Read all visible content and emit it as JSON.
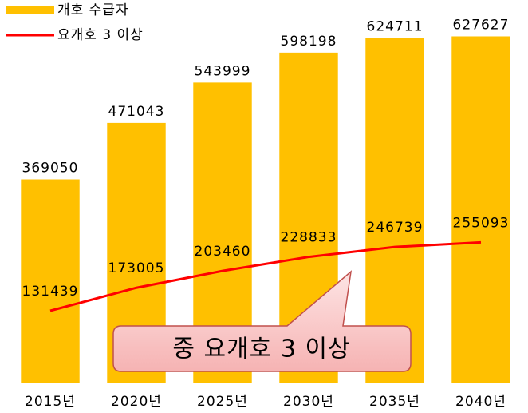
{
  "chart_data": {
    "type": "bar_line",
    "categories": [
      "2015년",
      "2020년",
      "2025년",
      "2030년",
      "2035년",
      "2040년"
    ],
    "series": [
      {
        "name": "개호 수급자",
        "color": "#ffc000",
        "type": "bar",
        "values": [
          369050,
          471043,
          543999,
          598198,
          624711,
          627627
        ]
      },
      {
        "name": "요개호 3 이상",
        "color": "#ff0000",
        "type": "line",
        "values": [
          131439,
          173005,
          203460,
          228833,
          246739,
          255093
        ]
      }
    ],
    "ylim": [
      0,
      650000
    ],
    "legend": "top-left",
    "annotation": "중 요개호 3 이상"
  }
}
